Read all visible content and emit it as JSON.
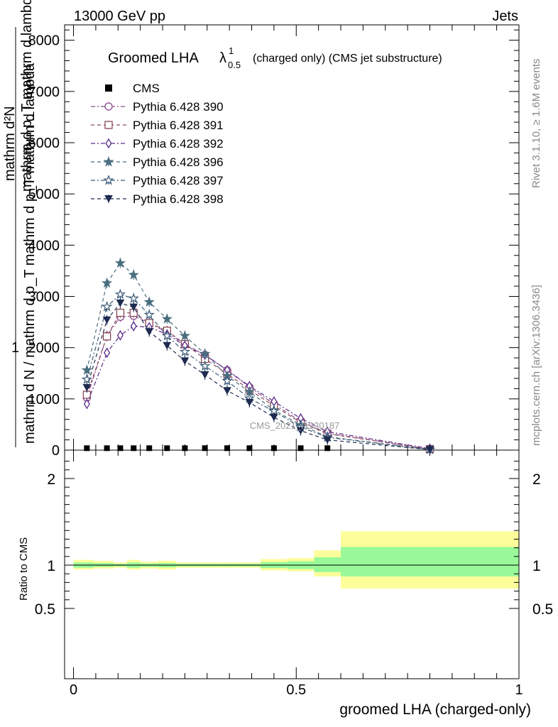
{
  "header": {
    "left": "13000 GeV pp",
    "right": "Jets"
  },
  "side": {
    "rivet": "Rivet 3.1.10, ≥ 1.6M events",
    "mcplots": "mcplots.cern.ch [arXiv:1306.3436]"
  },
  "watermark": "CMS_2021_I1920187",
  "title": {
    "main": "Groomed LHA",
    "lambda": "λ",
    "sup": "1",
    "sub": "0.5",
    "rest": "(charged only) (CMS jet substructure)"
  },
  "yaxis": {
    "label_top": "1",
    "label_num": "mathrm d N",
    "label_den": "mathrm d N / mathrm d p_T mathrm d p_T mathrm d lambda",
    "label_lines": [
      "mathrm d²N",
      "mathrm d p_T mathrm d lambda"
    ],
    "ratio_label": "Ratio to CMS"
  },
  "xaxis": {
    "label": "groomed LHA (charged-only)",
    "ticks": [
      "0",
      "0.5",
      "1"
    ]
  },
  "colors": {
    "green_band": "#99f999",
    "yellow_band": "#fdfd99"
  },
  "chart_data": {
    "type": "line",
    "xlim": [
      -0.02,
      1.0
    ],
    "ylim": [
      0,
      8300
    ],
    "yticks": [
      "1000",
      "2000",
      "3000",
      "4000",
      "5000",
      "6000",
      "7000",
      "8000"
    ],
    "x": [
      0.03,
      0.075,
      0.105,
      0.135,
      0.17,
      0.21,
      0.25,
      0.295,
      0.345,
      0.395,
      0.45,
      0.51,
      0.57,
      0.8
    ],
    "cms": [
      10,
      10,
      10,
      10,
      10,
      10,
      10,
      10,
      10,
      10,
      10,
      10,
      10,
      10
    ],
    "series": [
      {
        "name": "Pythia 6.428 390",
        "color": "#8a4a8e",
        "marker": "circle-open",
        "values": [
          1020,
          2230,
          2600,
          2620,
          2480,
          2300,
          2060,
          1860,
          1560,
          1230,
          900,
          560,
          330,
          20
        ]
      },
      {
        "name": "Pythia 6.428 391",
        "color": "#8a4a5a",
        "marker": "square-open",
        "values": [
          1080,
          2220,
          2680,
          2680,
          2480,
          2330,
          2070,
          1780,
          1490,
          1180,
          860,
          540,
          320,
          20
        ]
      },
      {
        "name": "Pythia 6.428 392",
        "color": "#5a2a8a",
        "marker": "diamond-open",
        "values": [
          900,
          1900,
          2240,
          2420,
          2400,
          2260,
          2040,
          1860,
          1560,
          1250,
          950,
          620,
          360,
          30
        ]
      },
      {
        "name": "Pythia 6.428 396",
        "color": "#4a6e80",
        "marker": "star-filled",
        "values": [
          1560,
          3260,
          3650,
          3420,
          2890,
          2560,
          2230,
          1880,
          1450,
          1140,
          780,
          490,
          260,
          10
        ]
      },
      {
        "name": "Pythia 6.428 397",
        "color": "#3a5a78",
        "marker": "star-open",
        "values": [
          1380,
          2800,
          3040,
          2960,
          2640,
          2230,
          1920,
          1640,
          1350,
          1010,
          760,
          450,
          250,
          10
        ]
      },
      {
        "name": "Pythia 6.428 398",
        "color": "#1e2a50",
        "marker": "triangle-down",
        "values": [
          1220,
          2540,
          2870,
          2790,
          2310,
          2040,
          1740,
          1470,
          1160,
          930,
          640,
          380,
          200,
          10
        ]
      }
    ],
    "ratio": {
      "ylim": [
        0.42,
        2.25
      ],
      "yticks": [
        "0.5",
        "1",
        "2"
      ],
      "bin_edges": [
        0.0,
        0.045,
        0.09,
        0.12,
        0.15,
        0.19,
        0.23,
        0.27,
        0.32,
        0.37,
        0.42,
        0.48,
        0.54,
        0.6,
        1.0
      ],
      "yellow_lo": [
        0.95,
        0.96,
        0.97,
        0.95,
        0.96,
        0.95,
        0.97,
        0.97,
        0.97,
        0.97,
        0.94,
        0.93,
        0.87,
        0.73
      ],
      "yellow_hi": [
        1.06,
        1.05,
        1.03,
        1.06,
        1.04,
        1.05,
        1.03,
        1.03,
        1.03,
        1.03,
        1.07,
        1.08,
        1.17,
        1.39
      ],
      "green_lo": [
        0.97,
        0.98,
        0.985,
        0.97,
        0.98,
        0.975,
        0.985,
        0.985,
        0.985,
        0.985,
        0.965,
        0.955,
        0.92,
        0.87
      ],
      "green_hi": [
        1.03,
        1.025,
        1.015,
        1.03,
        1.02,
        1.025,
        1.015,
        1.015,
        1.015,
        1.015,
        1.035,
        1.045,
        1.09,
        1.21
      ]
    }
  }
}
